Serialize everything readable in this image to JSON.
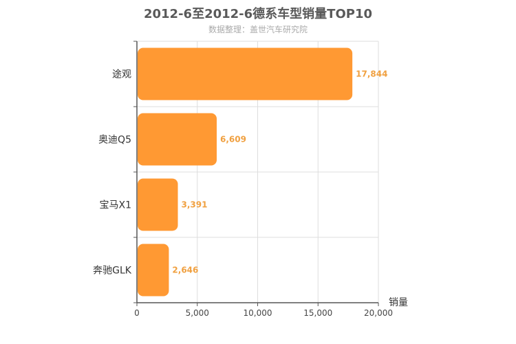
{
  "title": "2012-6至2012-6德系车型销量TOP10",
  "subtitle": "数据整理：盖世汽车研究院",
  "chart_data": {
    "type": "bar",
    "orientation": "horizontal",
    "categories": [
      "途观",
      "奥迪Q5",
      "宝马X1",
      "奔驰GLK"
    ],
    "values": [
      17844,
      6609,
      3391,
      2646
    ],
    "value_labels": [
      "17,844",
      "6,609",
      "3,391",
      "2,646"
    ],
    "xlabel": "销量",
    "xlim": [
      0,
      20000
    ],
    "xticks": [
      0,
      5000,
      10000,
      15000,
      20000
    ],
    "xtick_labels": [
      "0",
      "5,000",
      "10,000",
      "15,000",
      "20,000"
    ],
    "grid": true,
    "bar_color": "#ff9933",
    "label_color": "#f0a040"
  }
}
